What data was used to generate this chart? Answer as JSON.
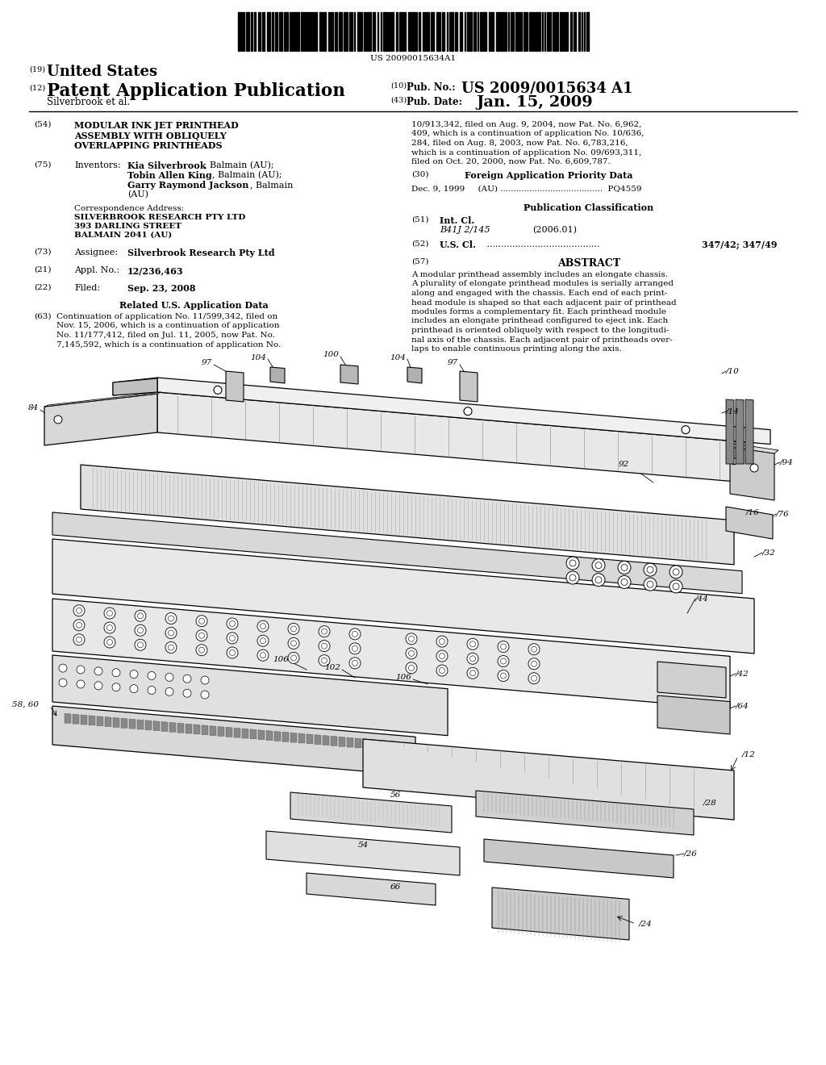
{
  "background_color": "#ffffff",
  "barcode_text": "US 20090015634A1",
  "header_19_text": "United States",
  "header_12_text": "Patent Application Publication",
  "pub_no_label": "(10) Pub. No.:",
  "pub_no_value": "US 2009/0015634 A1",
  "pub_date_label": "(43) Pub. Date:",
  "pub_date_value": "Jan. 15, 2009",
  "author_line": "Silverbrook et al.",
  "section54_title_lines": [
    "MODULAR INK JET PRINTHEAD",
    "ASSEMBLY WITH OBLIQUELY",
    "OVERLAPPING PRINTHEADS"
  ],
  "inventors_name1": "Kia Silverbrook",
  "inventors_loc1": ", Balmain (AU);",
  "inventors_name2": "Tobin Allen King",
  "inventors_loc2": ", Balmain (AU);",
  "inventors_name3": "Garry Raymond Jackson",
  "inventors_loc3": ", Balmain",
  "inventors_loc3b": "(AU)",
  "corr_line0": "Correspondence Address:",
  "corr_line1": "SILVERBROOK RESEARCH PTY LTD",
  "corr_line2": "393 DARLING STREET",
  "corr_line3": "BALMAIN 2041 (AU)",
  "assignee_value": "Silverbrook Research Pty Ltd",
  "appl_no_value": "12/236,463",
  "filed_value": "Sep. 23, 2008",
  "related_title": "Related U.S. Application Data",
  "s63_lines": [
    "Continuation of application No. 11/599,342, filed on",
    "Nov. 15, 2006, which is a continuation of application",
    "No. 11/177,412, filed on Jul. 11, 2005, now Pat. No.",
    "7,145,592, which is a continuation of application No."
  ],
  "right_top_lines": [
    "10/913,342, filed on Aug. 9, 2004, now Pat. No. 6,962,",
    "409, which is a continuation of application No. 10/636,",
    "284, filed on Aug. 8, 2003, now Pat. No. 6,783,216,",
    "which is a continuation of application No. 09/693,311,",
    "filed on Oct. 20, 2000, now Pat. No. 6,609,787."
  ],
  "foreign_title": "Foreign Application Priority Data",
  "foreign_data": "Dec. 9, 1999     (AU) .......................................  PQ4559",
  "pub_class_title": "Publication Classification",
  "int_cl_label": "Int. Cl.",
  "int_cl_class": "B41J 2/145",
  "int_cl_year": "(2006.01)",
  "us_cl_label": "U.S. Cl.",
  "us_cl_dots": " ........................................",
  "us_cl_value": "347/42; 347/49",
  "abstract_title": "ABSTRACT",
  "abstract_lines": [
    "A modular printhead assembly includes an elongate chassis.",
    "A plurality of elongate printhead modules is serially arranged",
    "along and engaged with the chassis. Each end of each print-",
    "head module is shaped so that each adjacent pair of printhead",
    "modules forms a complementary fit. Each printhead module",
    "includes an elongate printhead configured to eject ink. Each",
    "printhead is oriented obliquely with respect to the longitudi-",
    "nal axis of the chassis. Each adjacent pair of printheads over-",
    "laps to enable continuous printing along the axis."
  ]
}
